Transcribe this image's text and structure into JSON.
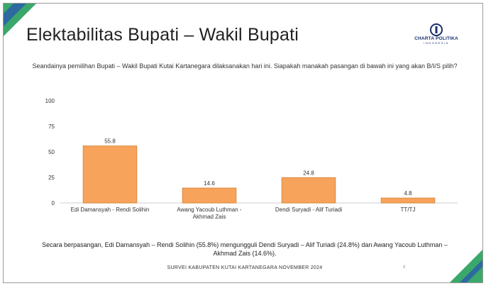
{
  "slide": {
    "title": "Elektabilitas Bupati – Wakil Bupati",
    "question": "Seandainya pemilihan Bupati – Wakil Bupati Kutai Kartanegara dilaksanakan hari ini. Siapakah manakah pasangan di bawah ini yang akan B/I/S pilih?",
    "summary": "Secara berpasangan, Edi Damansyah – Rendi Solihin (55.8%) mengungguli Dendi Suryadi – Alif Turiadi (24.8%) dan Awang Yacoub Luthman – Akhmad Zais (14.6%).",
    "footer": "SURVEI KABUPATEN KUTAI KARTANEGARA NOVEMBER 2024",
    "page_number": "9"
  },
  "logo": {
    "name": "CHARTA POLITIKA",
    "sub": "INDONESIA"
  },
  "colors": {
    "bar_fill": "#f7a35b",
    "bar_stroke": "#d98a3d",
    "accent_green": "#3aa86b",
    "accent_blue": "#2c5fa8",
    "logo_blue": "#1a2f6e"
  },
  "chart_data": {
    "type": "bar",
    "categories": [
      [
        "Edi Damansyah - Rendi Solihin"
      ],
      [
        "Awang Yacoub Luthman -",
        "Akhmad Zais"
      ],
      [
        "Dendi Suryadi - Alif Turiadi"
      ],
      [
        "TT/TJ"
      ]
    ],
    "values": [
      55.8,
      14.6,
      24.8,
      4.8
    ],
    "value_labels": [
      "55.8",
      "14.6",
      "24.8",
      "4.8"
    ],
    "ylim": [
      0,
      100
    ],
    "yticks": [
      0,
      25,
      50,
      75,
      100
    ],
    "grid": false,
    "legend": "none"
  }
}
